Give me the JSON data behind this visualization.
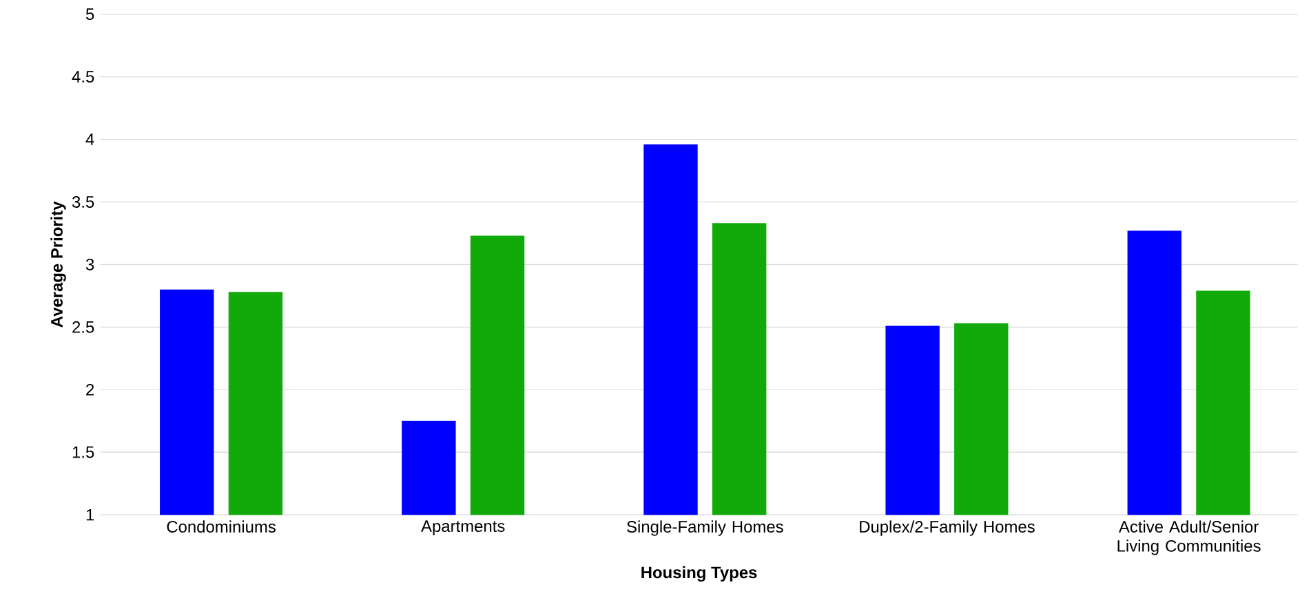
{
  "chart_data": {
    "type": "bar",
    "xlabel": "Housing Types",
    "ylabel": "Average Priority",
    "categories": [
      "Condominiums",
      "Apartments",
      "Single-Family Homes",
      "Duplex/2-Family Homes",
      "Active Adult/Senior Living Communities"
    ],
    "series": [
      {
        "color": "#0000ff",
        "values": [
          2.8,
          1.75,
          3.96,
          2.51,
          3.27
        ]
      },
      {
        "color": "#12aa0a",
        "values": [
          2.78,
          3.23,
          3.33,
          2.53,
          2.79
        ]
      }
    ],
    "ylim": [
      1,
      5
    ],
    "yticks": [
      1,
      1.5,
      2,
      2.5,
      3,
      3.5,
      4,
      4.5,
      5
    ],
    "grid": "y"
  }
}
